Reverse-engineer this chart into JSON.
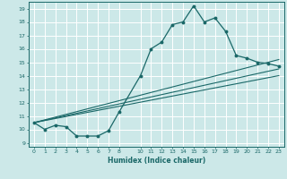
{
  "xlabel": "Humidex (Indice chaleur)",
  "ylabel": "",
  "bg_color": "#cce8e8",
  "grid_color": "#ffffff",
  "line_color": "#1a6868",
  "xlim": [
    -0.5,
    23.5
  ],
  "ylim": [
    8.7,
    19.5
  ],
  "xticks": [
    0,
    1,
    2,
    3,
    4,
    5,
    6,
    7,
    8,
    10,
    11,
    12,
    13,
    14,
    15,
    16,
    17,
    18,
    19,
    20,
    21,
    22,
    23
  ],
  "yticks": [
    9,
    10,
    11,
    12,
    13,
    14,
    15,
    16,
    17,
    18,
    19
  ],
  "curve1_x": [
    0,
    1,
    2,
    3,
    4,
    5,
    6,
    7,
    8,
    10,
    11,
    12,
    13,
    14,
    15,
    16,
    17,
    18,
    19,
    20,
    21,
    22,
    23
  ],
  "curve1_y": [
    10.5,
    10.0,
    10.3,
    10.2,
    9.5,
    9.5,
    9.5,
    9.9,
    11.3,
    14.0,
    16.0,
    16.5,
    17.8,
    18.0,
    19.2,
    18.0,
    18.3,
    17.3,
    15.5,
    15.3,
    15.0,
    14.9,
    14.7
  ],
  "line1_x": [
    0,
    23
  ],
  "line1_y": [
    10.5,
    15.2
  ],
  "line2_x": [
    0,
    23
  ],
  "line2_y": [
    10.5,
    14.5
  ],
  "line3_x": [
    0,
    23
  ],
  "line3_y": [
    10.5,
    14.0
  ]
}
